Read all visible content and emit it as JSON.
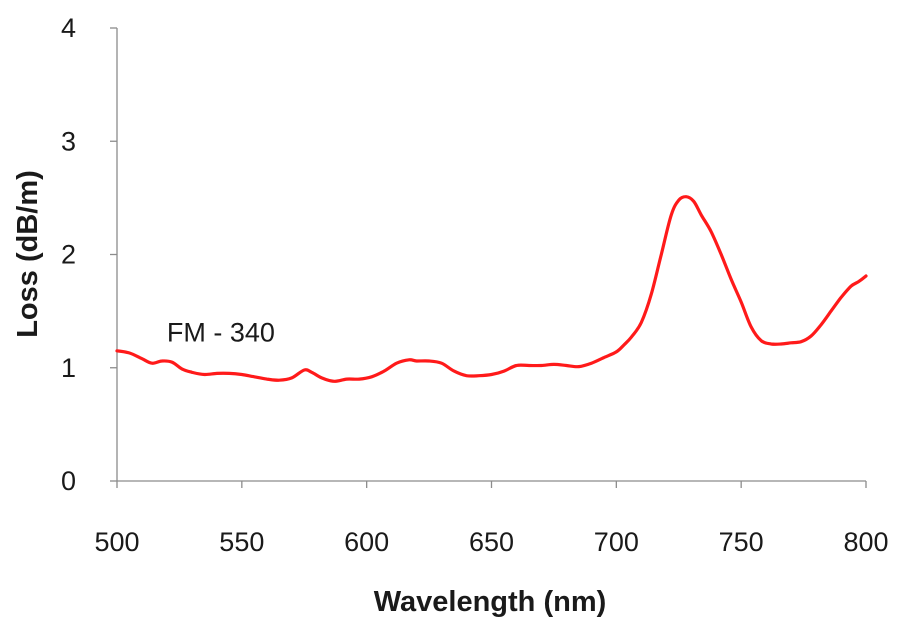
{
  "chart_data": {
    "type": "line",
    "title": "",
    "xlabel": "Wavelength (nm)",
    "ylabel": "Loss (dB/m)",
    "xlim": [
      500,
      800
    ],
    "ylim": [
      0,
      4
    ],
    "xticks": [
      500,
      550,
      600,
      650,
      700,
      750,
      800
    ],
    "yticks": [
      0,
      1,
      2,
      3,
      4
    ],
    "grid": false,
    "legend": "none",
    "line_color": "#ff1a1a",
    "annotations": [
      {
        "text": "FM - 340",
        "x": 532,
        "y": 1.32
      }
    ],
    "series": [
      {
        "x": [
          500,
          505,
          510,
          514,
          518,
          522,
          526,
          530,
          535,
          540,
          545,
          550,
          555,
          560,
          565,
          570,
          575,
          578,
          582,
          587,
          592,
          597,
          602,
          607,
          612,
          617,
          620,
          625,
          630,
          635,
          640,
          645,
          650,
          655,
          660,
          665,
          670,
          675,
          680,
          685,
          690,
          695,
          700,
          703,
          706,
          710,
          714,
          718,
          722,
          725,
          728,
          731,
          734,
          738,
          742,
          746,
          750,
          754,
          758,
          762,
          766,
          770,
          774,
          778,
          782,
          786,
          790,
          794,
          797,
          800
        ],
        "y": [
          1.15,
          1.13,
          1.08,
          1.04,
          1.06,
          1.05,
          0.99,
          0.96,
          0.94,
          0.95,
          0.95,
          0.94,
          0.92,
          0.9,
          0.89,
          0.91,
          0.98,
          0.96,
          0.91,
          0.88,
          0.9,
          0.9,
          0.92,
          0.97,
          1.04,
          1.07,
          1.06,
          1.06,
          1.04,
          0.97,
          0.93,
          0.93,
          0.94,
          0.97,
          1.02,
          1.02,
          1.02,
          1.03,
          1.02,
          1.01,
          1.04,
          1.09,
          1.14,
          1.2,
          1.27,
          1.4,
          1.65,
          2.0,
          2.35,
          2.48,
          2.51,
          2.47,
          2.35,
          2.2,
          2.0,
          1.78,
          1.58,
          1.36,
          1.24,
          1.21,
          1.21,
          1.22,
          1.23,
          1.28,
          1.38,
          1.5,
          1.62,
          1.72,
          1.76,
          1.81
        ]
      }
    ]
  }
}
